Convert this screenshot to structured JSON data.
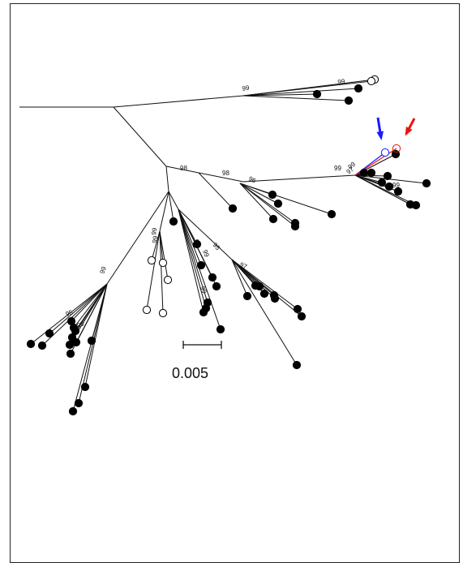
{
  "tree": {
    "scale_bar_label": "0.005",
    "bootstrap_labels": [
      "99",
      "99",
      "98",
      "98",
      "96",
      "99",
      "97",
      "99",
      "99",
      "99",
      "99",
      "99",
      "99",
      "99",
      "95",
      "97",
      "99",
      "95",
      "99"
    ]
  },
  "colors": {
    "branch": "#111111",
    "marker_blue": "#1a1aff",
    "marker_red": "#ee1111",
    "tip_filled": "#000000",
    "tip_open": "#ffffff"
  },
  "annotations": {
    "arrows": [
      {
        "color_key": "marker_blue",
        "icon": "down-arrow-icon"
      },
      {
        "color_key": "marker_red",
        "icon": "down-left-arrow-icon"
      }
    ]
  }
}
